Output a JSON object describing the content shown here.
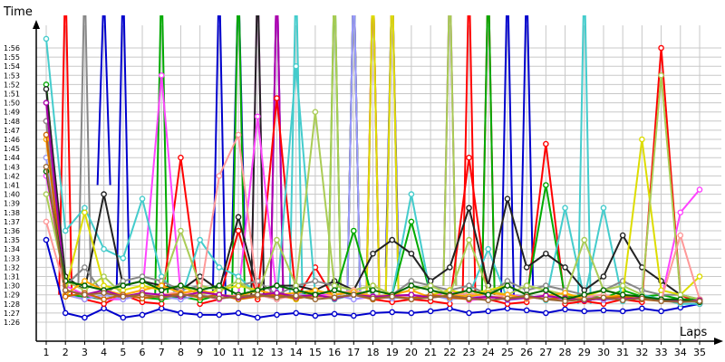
{
  "chart_data": {
    "type": "line",
    "xlabel": "Laps",
    "ylabel": "Time",
    "xlim": [
      1,
      35
    ],
    "ylim_seconds": [
      85,
      117
    ],
    "y_ticks": [
      "1:26",
      "1:27",
      "1:28",
      "1:29",
      "1:30",
      "1:31",
      "1:32",
      "1:33",
      "1:34",
      "1:35",
      "1:36",
      "1:37",
      "1:38",
      "1:39",
      "1:40",
      "1:41",
      "1:42",
      "1:43",
      "1:44",
      "1:45",
      "1:46",
      "1:47",
      "1:48",
      "1:49",
      "1:50",
      "1:51",
      "1:52",
      "1:53",
      "1:54",
      "1:55",
      "1:56"
    ],
    "x_ticks": [
      1,
      2,
      3,
      4,
      5,
      6,
      7,
      8,
      9,
      10,
      11,
      12,
      13,
      14,
      15,
      16,
      17,
      18,
      19,
      20,
      21,
      22,
      23,
      24,
      25,
      26,
      27,
      28,
      29,
      30,
      31,
      32,
      33,
      34,
      35
    ],
    "grid": true,
    "legend": "none",
    "series": [
      {
        "color": "#0000cc",
        "values": [
          95,
          87,
          86.5,
          87.5,
          86.5,
          86.8,
          87.5,
          87,
          86.8,
          86.8,
          87,
          86.5,
          86.8,
          87,
          86.7,
          86.9,
          86.7,
          87,
          87.1,
          87,
          87.2,
          87.5,
          87,
          87.2,
          87.5,
          87.3,
          87,
          87.4,
          87.2,
          87.3,
          87.2,
          87.5,
          87.2,
          87.6,
          88
        ]
      },
      {
        "color": "#ff0000",
        "values": [
          108,
          89,
          88.5,
          88,
          89,
          88.2,
          88,
          104,
          88,
          88.5,
          96,
          88.5,
          110.5,
          88.5,
          92,
          88.5,
          89,
          88.5,
          88.2,
          88.5,
          88.3,
          88,
          104,
          88.5,
          88,
          88.2,
          105.5,
          88,
          88.3,
          88,
          88.5,
          88.2,
          116,
          89,
          88
        ]
      },
      {
        "color": "#00aa00",
        "values": [
          112,
          89,
          88.8,
          88.5,
          89,
          88.7,
          88.5,
          88.8,
          88.4,
          89,
          88.7,
          89,
          88.8,
          89,
          89.2,
          88.8,
          96,
          88.5,
          89,
          97,
          89,
          88.8,
          89.2,
          88.6,
          89,
          88.8,
          101,
          88.7,
          89,
          88.6,
          89.5,
          88.8,
          89,
          88.5,
          88.5
        ]
      },
      {
        "color": "#ff44ff",
        "values": [
          102,
          90,
          89,
          88.5,
          88.5,
          89,
          113,
          89,
          89,
          88.5,
          89,
          108.5,
          88.8,
          88.6,
          89,
          89,
          88.5,
          88.8,
          88.6,
          89,
          88.7,
          89.5,
          88.4,
          88.6,
          89,
          88.8,
          88.5,
          88.4,
          88.7,
          88.6,
          89,
          88.5,
          88.4,
          98,
          100.5
        ]
      },
      {
        "color": "#44cccc",
        "values": [
          117,
          96,
          98.5,
          94,
          93,
          99.5,
          91,
          88.5,
          95,
          92,
          91,
          89,
          88.5,
          114,
          89,
          88.5,
          89,
          88.8,
          89,
          100,
          89,
          88.5,
          89,
          94,
          88.5,
          89,
          88.4,
          98.5,
          88.6,
          98.5,
          88.3,
          89,
          88.5,
          88,
          88
        ]
      },
      {
        "color": "#222222",
        "values": [
          111.5,
          91,
          89.5,
          100,
          90,
          90.5,
          90,
          89.5,
          91,
          89.5,
          97.5,
          89.5,
          90,
          90,
          89.5,
          90.5,
          89.5,
          93.5,
          95,
          93.5,
          90.5,
          92,
          98.5,
          90,
          99.5,
          92,
          93.5,
          92,
          89.5,
          91,
          95.5,
          92,
          90.5,
          89,
          88.5
        ]
      },
      {
        "color": "#888888",
        "values": [
          108,
          90,
          92,
          89,
          90.5,
          91,
          90.5,
          89.5,
          90,
          89.5,
          90,
          90.5,
          89,
          90,
          90.5,
          90,
          89.5,
          90,
          89,
          90.5,
          90,
          89.5,
          90,
          89,
          90.5,
          89.5,
          90,
          89.5,
          89,
          89.5,
          90.5,
          89.5,
          89,
          89,
          88.5
        ]
      },
      {
        "color": "#dddd00",
        "values": [
          104,
          89.5,
          98,
          90,
          89.5,
          90,
          89.5,
          90,
          89,
          89.5,
          90,
          89.5,
          89,
          88.5,
          89.5,
          89,
          89.5,
          90,
          89,
          88.5,
          89,
          89.5,
          89,
          89.5,
          90,
          89,
          89.5,
          89,
          88.8,
          89.5,
          89,
          106,
          89.5,
          89,
          91
        ]
      },
      {
        "color": "#9999ff",
        "values": [
          104,
          89,
          88.5,
          89,
          88.5,
          89,
          88.8,
          88.5,
          89,
          88.6,
          88.8,
          89,
          88.5,
          89.2,
          88.7,
          89,
          88.5,
          88.9,
          88.6,
          88.8,
          89,
          88.5,
          88.7,
          88.9,
          88.4,
          88.6,
          88.8,
          88.5,
          88.7,
          88.4,
          88.6,
          88.5,
          88.4,
          88.3,
          88.2
        ]
      },
      {
        "color": "#aacc55",
        "values": [
          100,
          90.5,
          89.5,
          91,
          89,
          89.5,
          90,
          96,
          90,
          89.5,
          90.5,
          89,
          95,
          90,
          109,
          90,
          89.5,
          90,
          89,
          89.5,
          90,
          89,
          95,
          89.5,
          89,
          90,
          89.5,
          89,
          95,
          89.5,
          90,
          89,
          113,
          89,
          88.5
        ]
      },
      {
        "color": "#ff9999",
        "values": [
          97,
          89.5,
          89,
          89.5,
          89,
          88.8,
          89,
          89.3,
          89,
          102,
          106.5,
          89,
          88.5,
          89,
          88.7,
          89,
          89.5,
          88.8,
          89,
          88.6,
          89,
          88.8,
          89.2,
          88.7,
          89,
          88.5,
          89,
          88.6,
          88.8,
          89,
          88.5,
          88.7,
          88.4,
          95.5,
          88.5
        ]
      },
      {
        "color": "#ffaa00",
        "values": [
          106,
          89,
          90.5,
          89.5,
          89,
          89.5,
          90,
          89.2,
          89.5,
          89,
          88.8,
          89.5,
          89,
          89.2,
          89.5,
          89,
          89.3,
          88.8,
          89,
          89.5,
          88.7,
          89,
          88.8,
          89.2,
          89,
          88.6,
          88.9,
          89.2,
          88.5,
          88.7,
          89,
          88.6,
          88.5,
          88.3,
          88.4
        ]
      },
      {
        "color": "#cc6600",
        "values": [
          106.5,
          88.8,
          89.2,
          88.5,
          89,
          88.6,
          88.9,
          89.1,
          88.7,
          89,
          88.5,
          88.8,
          89,
          88.6,
          88.9,
          88.7,
          89,
          88.5,
          88.8,
          88.6,
          89,
          88.7,
          88.5,
          88.8,
          88.6,
          88.9,
          88.5,
          88.7,
          88.4,
          88.6,
          88.8,
          88.5,
          88.3,
          88.4,
          88.2
        ]
      },
      {
        "color": "#aa00aa",
        "values": [
          110,
          89.5,
          89,
          89.5,
          88.8,
          89.2,
          89,
          88.8,
          89.3,
          89,
          88.7,
          89,
          89.2,
          88.8,
          89,
          88.6,
          89,
          88.8,
          88.9,
          89,
          88.7,
          88.9,
          88.6,
          88.8,
          88.5,
          88.7,
          88.9,
          88.6,
          88.4,
          88.6,
          88.5,
          88.7,
          88.4,
          88.3,
          88.4
        ]
      },
      {
        "color": "#006600",
        "values": [
          102.5,
          90.5,
          90,
          89.5,
          90,
          90.5,
          89.5,
          90,
          89.5,
          90,
          89,
          89.5,
          90,
          89.5,
          89,
          89.5,
          89,
          89.5,
          89,
          90,
          89.5,
          89,
          89.5,
          89,
          90,
          89,
          89.5,
          88.5,
          89,
          89.5,
          89,
          88.8,
          88.5,
          88.5,
          88.2
        ]
      },
      {
        "color": "#996633",
        "values": [
          103,
          89.5,
          89,
          89.2,
          88.8,
          89,
          88.7,
          89,
          88.9,
          88.6,
          88.8,
          89,
          88.7,
          88.9,
          88.5,
          88.7,
          89,
          88.6,
          88.8,
          88.5,
          88.7,
          88.9,
          88.6,
          88.4,
          88.6,
          88.8,
          88.5,
          88.3,
          88.5,
          88.7,
          88.4,
          88.6,
          88.3,
          88.2,
          88.3
        ]
      }
    ],
    "spikes": [
      {
        "color": "#0000cc",
        "x": 4,
        "low": 101
      },
      {
        "color": "#0000cc",
        "x": 5,
        "low": 90
      },
      {
        "color": "#0000cc",
        "x": 10,
        "low": 89
      },
      {
        "color": "#0000cc",
        "x": 11,
        "low": 95
      },
      {
        "color": "#0000cc",
        "x": 13,
        "low": 89
      },
      {
        "color": "#0000cc",
        "x": 17,
        "low": 89
      },
      {
        "color": "#0000cc",
        "x": 19,
        "low": 92
      },
      {
        "color": "#0000cc",
        "x": 25,
        "low": 89
      },
      {
        "color": "#0000cc",
        "x": 26,
        "low": 90
      },
      {
        "color": "#ff0000",
        "x": 17,
        "low": 89
      },
      {
        "color": "#ff0000",
        "x": 18,
        "low": 90
      },
      {
        "color": "#ff0000",
        "x": 23,
        "low": 89
      },
      {
        "color": "#ff0000",
        "x": 24,
        "low": 89
      },
      {
        "color": "#00aa00",
        "x": 7,
        "low": 89
      },
      {
        "color": "#00aa00",
        "x": 11,
        "low": 89
      },
      {
        "color": "#00aa00",
        "x": 16,
        "low": 89
      },
      {
        "color": "#00aa00",
        "x": 17,
        "low": 89
      },
      {
        "color": "#00aa00",
        "x": 19,
        "low": 89
      },
      {
        "color": "#00aa00",
        "x": 24,
        "low": 89
      },
      {
        "color": "#ff44ff",
        "x": 12,
        "low": 89
      },
      {
        "color": "#ff44ff",
        "x": 13,
        "low": 89
      },
      {
        "color": "#ff44ff",
        "x": 18,
        "low": 89
      },
      {
        "color": "#ff44ff",
        "x": 19,
        "low": 89
      },
      {
        "color": "#ff44ff",
        "x": 22,
        "low": 90
      },
      {
        "color": "#44cccc",
        "x": 14,
        "low": 89
      },
      {
        "color": "#44cccc",
        "x": 29,
        "low": 88
      },
      {
        "color": "#888888",
        "x": 3,
        "low": 90
      },
      {
        "color": "#888888",
        "x": 22,
        "low": 90
      },
      {
        "color": "#aacc55",
        "x": 16,
        "low": 89
      },
      {
        "color": "#aacc55",
        "x": 18,
        "low": 89
      },
      {
        "color": "#aacc55",
        "x": 22,
        "low": 90
      },
      {
        "color": "#aa00aa",
        "x": 13,
        "low": 89
      },
      {
        "color": "#aa00aa",
        "x": 18,
        "low": 89
      },
      {
        "color": "#dddd00",
        "x": 18,
        "low": 89
      },
      {
        "color": "#dddd00",
        "x": 19,
        "low": 89
      },
      {
        "color": "#9999ff",
        "x": 17,
        "low": 89
      },
      {
        "color": "#222222",
        "x": 12,
        "low": 89
      },
      {
        "color": "#ff0000",
        "x": 2,
        "low": 89
      }
    ]
  }
}
